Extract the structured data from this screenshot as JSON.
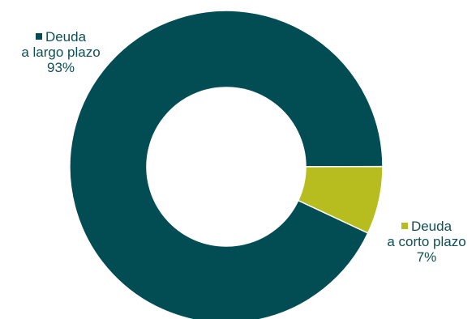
{
  "chart_data": {
    "type": "pie",
    "variant": "donut",
    "categories": [
      "Deuda a largo plazo",
      "Deuda a corto plazo"
    ],
    "values": [
      93,
      7
    ],
    "unit": "%",
    "colors": [
      "#024c53",
      "#b7bd1f"
    ],
    "slices": [
      {
        "label_line1": "Deuda",
        "label_line2": "a largo plazo",
        "percent_text": "93%",
        "value": 93,
        "color": "#024c53"
      },
      {
        "label_line1": "Deuda",
        "label_line2": "a corto plazo",
        "percent_text": "7%",
        "value": 7,
        "color": "#b7bd1f"
      }
    ],
    "legend": "labels-beside-slices"
  }
}
